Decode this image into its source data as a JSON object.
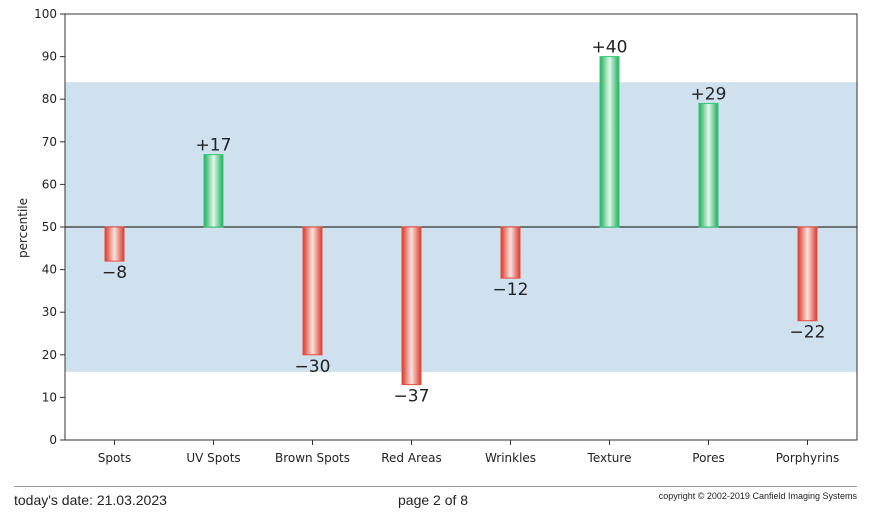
{
  "chart_data": {
    "type": "bar",
    "ylabel": "percentile",
    "ylim": [
      0,
      100
    ],
    "yticks": [
      0,
      10,
      20,
      30,
      40,
      50,
      60,
      70,
      80,
      90,
      100
    ],
    "baseline": 50,
    "band": [
      16,
      84
    ],
    "categories": [
      "Spots",
      "UV Spots",
      "Brown Spots",
      "Red Areas",
      "Wrinkles",
      "Texture",
      "Pores",
      "Porphyrins"
    ],
    "values": [
      42,
      67,
      20,
      13,
      38,
      90,
      79,
      28
    ],
    "labels": [
      "−8",
      "+17",
      "−30",
      "−37",
      "−12",
      "+40",
      "+29",
      "−22"
    ],
    "colors": {
      "positive": "#2ecc71",
      "negative": "#e74c3c",
      "band": "#cfe0ee"
    },
    "grid": false,
    "legend": "none"
  },
  "footer": {
    "date": "today's date: 21.03.2023",
    "page": "page 2 of 8",
    "copyright": "copyright © 2002-2019 Canfield Imaging Systems"
  }
}
